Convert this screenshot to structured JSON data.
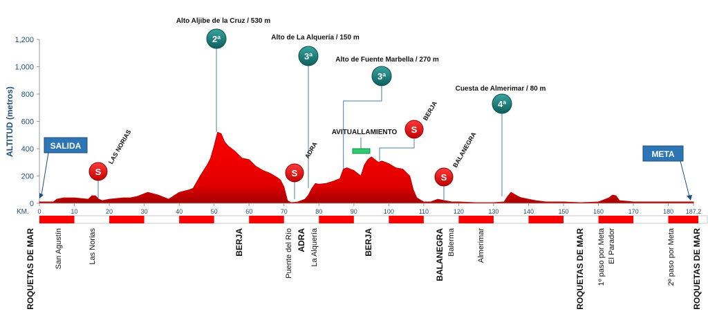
{
  "chart_data": {
    "type": "area",
    "title": "",
    "ylabel": "ALTITUD (metros)",
    "xlabel": "KM.",
    "ylim": [
      0,
      1200
    ],
    "xlim": [
      0,
      187.2
    ],
    "y_ticks": [
      0,
      200,
      400,
      600,
      800,
      1000,
      1200
    ],
    "y_tick_labels": [
      "0",
      "200",
      "400",
      "600",
      "800",
      "1,000",
      "1,200"
    ],
    "x_ticks": [
      0,
      10,
      20,
      30,
      40,
      50,
      60,
      70,
      80,
      90,
      100,
      110,
      120,
      130,
      140,
      150,
      160,
      170,
      180,
      187.2
    ],
    "x_tick_labels": [
      "0",
      "10",
      "20",
      "30",
      "40",
      "50",
      "60",
      "70",
      "80",
      "90",
      "100",
      "110",
      "120",
      "130",
      "140",
      "150",
      "160",
      "170",
      "180",
      "187,2"
    ],
    "series": [
      {
        "x": [
          0,
          2,
          4,
          5,
          7,
          10,
          14,
          15,
          16,
          17,
          18,
          20,
          24,
          26,
          28,
          31,
          34,
          37,
          40,
          43,
          44,
          46,
          48,
          49,
          50,
          51,
          52,
          53,
          54,
          56,
          58,
          60,
          62,
          64,
          66,
          68,
          69,
          70,
          71,
          72,
          74,
          76,
          77,
          78,
          79,
          80,
          82,
          84,
          86,
          87,
          88,
          90,
          92,
          93,
          94,
          95,
          96,
          97,
          98,
          100,
          102,
          104,
          106,
          107,
          108,
          110,
          112,
          114,
          116,
          118,
          120,
          125,
          130,
          133,
          134,
          135,
          136,
          137,
          138,
          140,
          142,
          145,
          150,
          155,
          160,
          161,
          162,
          163,
          164,
          165,
          166,
          168,
          170,
          172,
          175,
          180,
          185,
          187.2
        ],
        "values": [
          10,
          10,
          10,
          30,
          40,
          40,
          30,
          55,
          55,
          30,
          20,
          30,
          40,
          40,
          50,
          80,
          60,
          30,
          80,
          100,
          110,
          200,
          280,
          330,
          420,
          520,
          510,
          450,
          420,
          380,
          330,
          320,
          270,
          240,
          220,
          190,
          170,
          120,
          20,
          5,
          10,
          30,
          60,
          110,
          145,
          140,
          145,
          160,
          180,
          250,
          260,
          240,
          200,
          280,
          320,
          340,
          320,
          300,
          310,
          290,
          260,
          250,
          200,
          100,
          40,
          10,
          10,
          30,
          20,
          10,
          10,
          5,
          5,
          10,
          50,
          80,
          65,
          50,
          40,
          30,
          20,
          10,
          10,
          5,
          10,
          20,
          30,
          40,
          60,
          55,
          20,
          15,
          10,
          10,
          10,
          10,
          10,
          10
        ]
      }
    ],
    "climbs": [
      {
        "label": "Alto Aljibe de la Cruz / 530 m",
        "category": "2ª",
        "km": 51
      },
      {
        "label": "Alto de La Alquería / 150 m",
        "category": "3ª",
        "km": 78
      },
      {
        "label": "Alto de Fuente Marbella / 270 m",
        "category": "3ª",
        "km": 87
      },
      {
        "label": "Cuesta de Almerimar / 80 m",
        "category": "4ª",
        "km": 134
      }
    ],
    "sprints": [
      {
        "badge": "S",
        "name": "LAS NORIAS",
        "km": 17
      },
      {
        "badge": "S",
        "name": "ADRA",
        "km": 75
      },
      {
        "badge": "S",
        "name": "BERJA",
        "km": 99
      },
      {
        "badge": "S",
        "name": "BALANEGRA",
        "km": 118
      }
    ],
    "feed_zone": {
      "label": "AVITUALLAMIENTO",
      "km": 94
    },
    "start_label": "SALIDA",
    "finish_label": "META",
    "places": [
      {
        "name": "ROQUETAS DE MAR",
        "km": 0,
        "bold": true
      },
      {
        "name": "San Agustín",
        "km": 6,
        "bold": false
      },
      {
        "name": "Las Norias",
        "km": 16,
        "bold": false
      },
      {
        "name": "BERJA",
        "km": 58,
        "bold": true
      },
      {
        "name": "Puente del Río",
        "km": 73,
        "bold": false
      },
      {
        "name": "ADRA",
        "km": 76.5,
        "bold": true
      },
      {
        "name": "La Alquería",
        "km": 80,
        "bold": false
      },
      {
        "name": "BERJA",
        "km": 95,
        "bold": true
      },
      {
        "name": "BALANEGRA",
        "km": 117,
        "bold": true
      },
      {
        "name": "Balerma",
        "km": 120,
        "bold": false
      },
      {
        "name": "Almerimar",
        "km": 128,
        "bold": false
      },
      {
        "name": "ROQUETAS DE MAR",
        "km": 155,
        "bold": true
      },
      {
        "name": "1º paso por Meta",
        "km": 162,
        "bold": false
      },
      {
        "name": "El Parador",
        "km": 165,
        "bold": false
      },
      {
        "name": "2º paso por Meta",
        "km": 182,
        "bold": false
      },
      {
        "name": "ROQUETAS DE MAR",
        "km": 187.2,
        "bold": true
      }
    ],
    "grid": false,
    "legend": "none",
    "colors": {
      "area": "#ff0000",
      "area_dark": "#c00000",
      "axis_text": "#1f4e79",
      "teal": "#117a78",
      "blue_box": "#2e75b6",
      "green": "#2ecc71"
    }
  }
}
